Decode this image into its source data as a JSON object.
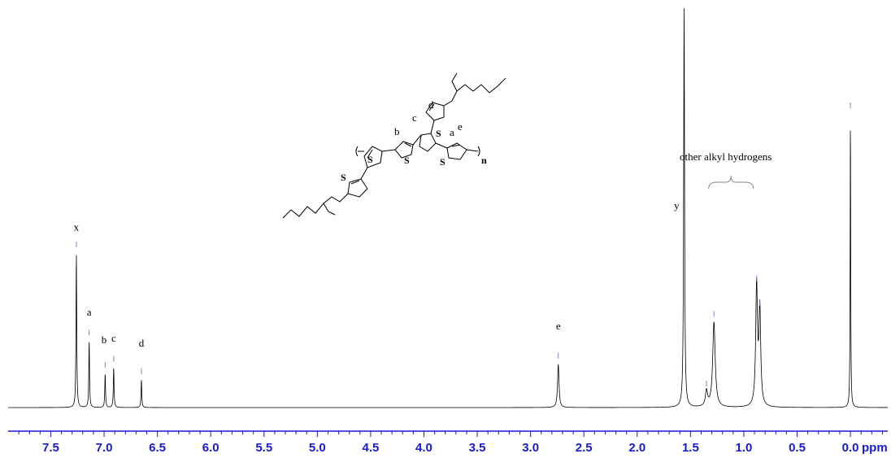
{
  "chart_data": {
    "type": "line",
    "xlabel": "ppm",
    "xlim": [
      7.9,
      -0.35
    ],
    "x_reversed": true,
    "x_ticks": [
      "7.5",
      "7.0",
      "6.5",
      "6.0",
      "5.5",
      "5.0",
      "4.5",
      "4.0",
      "3.5",
      "3.0",
      "2.5",
      "2.0",
      "1.5",
      "1.0",
      "0.5",
      "0.0"
    ],
    "colors": {
      "spectrum": "#000000",
      "axis": "#1a1ad0",
      "integral_marks": "#8080c8",
      "bracket": "#888888"
    },
    "peaks": [
      {
        "ppm": 7.26,
        "height": 1.0,
        "width": 0.004
      },
      {
        "ppm": 7.14,
        "height": 0.43,
        "width": 0.004
      },
      {
        "ppm": 6.99,
        "height": 0.22,
        "width": 0.004
      },
      {
        "ppm": 6.91,
        "height": 0.26,
        "width": 0.004
      },
      {
        "ppm": 6.65,
        "height": 0.18,
        "width": 0.004
      },
      {
        "ppm": 2.74,
        "height": 0.28,
        "width": 0.008
      },
      {
        "ppm": 1.56,
        "height": 2.6,
        "width": 0.005
      },
      {
        "ppm": 1.35,
        "height": 0.1,
        "width": 0.012
      },
      {
        "ppm": 1.28,
        "height": 0.55,
        "width": 0.014
      },
      {
        "ppm": 0.88,
        "height": 0.78,
        "width": 0.01
      },
      {
        "ppm": 0.85,
        "height": 0.62,
        "width": 0.01
      },
      {
        "ppm": 0.0,
        "height": 1.9,
        "width": 0.003
      }
    ],
    "peak_labels": [
      {
        "text": "x",
        "ppm": 7.26,
        "height": 1.04
      },
      {
        "text": "a",
        "ppm": 7.14,
        "height": 0.49
      },
      {
        "text": "b",
        "ppm": 7.0,
        "height": 0.31
      },
      {
        "text": "c",
        "ppm": 6.91,
        "height": 0.32
      },
      {
        "text": "d",
        "ppm": 6.65,
        "height": 0.29
      },
      {
        "text": "e",
        "ppm": 2.74,
        "height": 0.4
      },
      {
        "text": "y",
        "ppm": 1.63,
        "height": 1.18
      }
    ],
    "annotation": {
      "text": "other alkyl hydrogens",
      "ppm_from": 1.33,
      "ppm_to": 0.91
    },
    "structure_labels": [
      "S",
      "S",
      "S",
      "S",
      "S",
      "a",
      "b",
      "c",
      "d",
      "e",
      "n"
    ]
  }
}
